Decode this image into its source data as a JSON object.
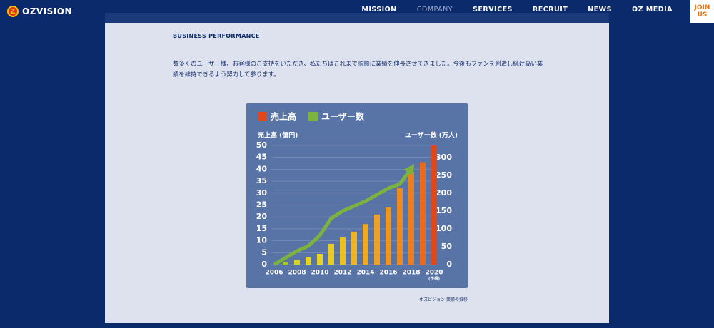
{
  "nav": {
    "logo": "OZVISION",
    "items": [
      "MISSION",
      "COMPANY",
      "SERVICES",
      "RECRUIT",
      "NEWS",
      "OZ MEDIA"
    ],
    "join": "JOIN US"
  },
  "section": {
    "heading": "BUSINESS PERFORMANCE",
    "text": "数多くのユーザー様、お客様のご支持をいただき、私たちはこれまで順調に業績を伸長させてきました。今後もファンを創造し続け高い業績を維持できるよう努力して参ります。",
    "caption": "オズビジョン 業績の推移"
  },
  "chart_data": {
    "type": "bar",
    "ylabel": "売上高 (億円)",
    "y2label": "ユーザー数 (万人)",
    "xlim": [
      2006,
      2020
    ],
    "xticks": [
      2006,
      2008,
      2010,
      2012,
      2014,
      2016,
      2018,
      2020
    ],
    "ylim": [
      0,
      50
    ],
    "yticks": [
      0,
      5,
      10,
      15,
      20,
      25,
      30,
      35,
      40,
      45,
      50
    ],
    "y2lim": [
      0,
      334
    ],
    "y2ticks": [
      0,
      50,
      100,
      150,
      200,
      250,
      300
    ],
    "grid": true,
    "annotation": "(予想)",
    "series": [
      {
        "name": "売上高",
        "color": "#e0471a",
        "x": [
          2007,
          2008,
          2009,
          2010,
          2011,
          2012,
          2013,
          2014,
          2015,
          2016,
          2017,
          2018,
          2019,
          2020
        ],
        "values": [
          1,
          2,
          3.3,
          4.5,
          8.7,
          11.4,
          13.8,
          17,
          21,
          24,
          32,
          39,
          43,
          50
        ],
        "colors": [
          "#a9c62e",
          "#d9d421",
          "#e6d51f",
          "#ead31e",
          "#eccb1f",
          "#edc020",
          "#eeb421",
          "#efa922",
          "#f0a022",
          "#f0961f",
          "#ef8b1e",
          "#ee7e1d",
          "#ea6a1c",
          "#e0471a"
        ]
      },
      {
        "name": "ユーザー数",
        "type": "line",
        "axis": "y2",
        "color": "#7bb33f",
        "x": [
          2006,
          2008,
          2009,
          2010,
          2011,
          2012,
          2013,
          2014,
          2015,
          2016,
          2017,
          2018
        ],
        "values": [
          0,
          38,
          52,
          82,
          130,
          150,
          164,
          178,
          196,
          214,
          226,
          270
        ]
      }
    ]
  }
}
